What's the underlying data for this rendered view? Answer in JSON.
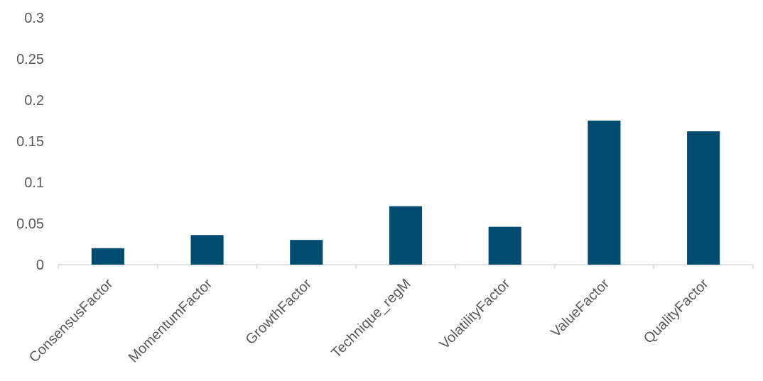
{
  "chart_data": {
    "type": "bar",
    "title": "",
    "xlabel": "",
    "ylabel": "",
    "categories": [
      "ConsensusFactor",
      "MomentumFactor",
      "GrowthFactor",
      "Technique_regM",
      "VolatilityFactor",
      "ValueFactor",
      "QualityFactor"
    ],
    "values": [
      0.02,
      0.036,
      0.03,
      0.071,
      0.046,
      0.175,
      0.162
    ],
    "ylim": [
      0,
      0.3
    ],
    "yticks": [
      "0",
      "0.05",
      "0.1",
      "0.15",
      "0.2",
      "0.25",
      "0.3"
    ],
    "grid": false,
    "legend": "none",
    "colors": {
      "bar": "#004b70",
      "axis": "#d9d9d9",
      "text": "#595959"
    }
  }
}
